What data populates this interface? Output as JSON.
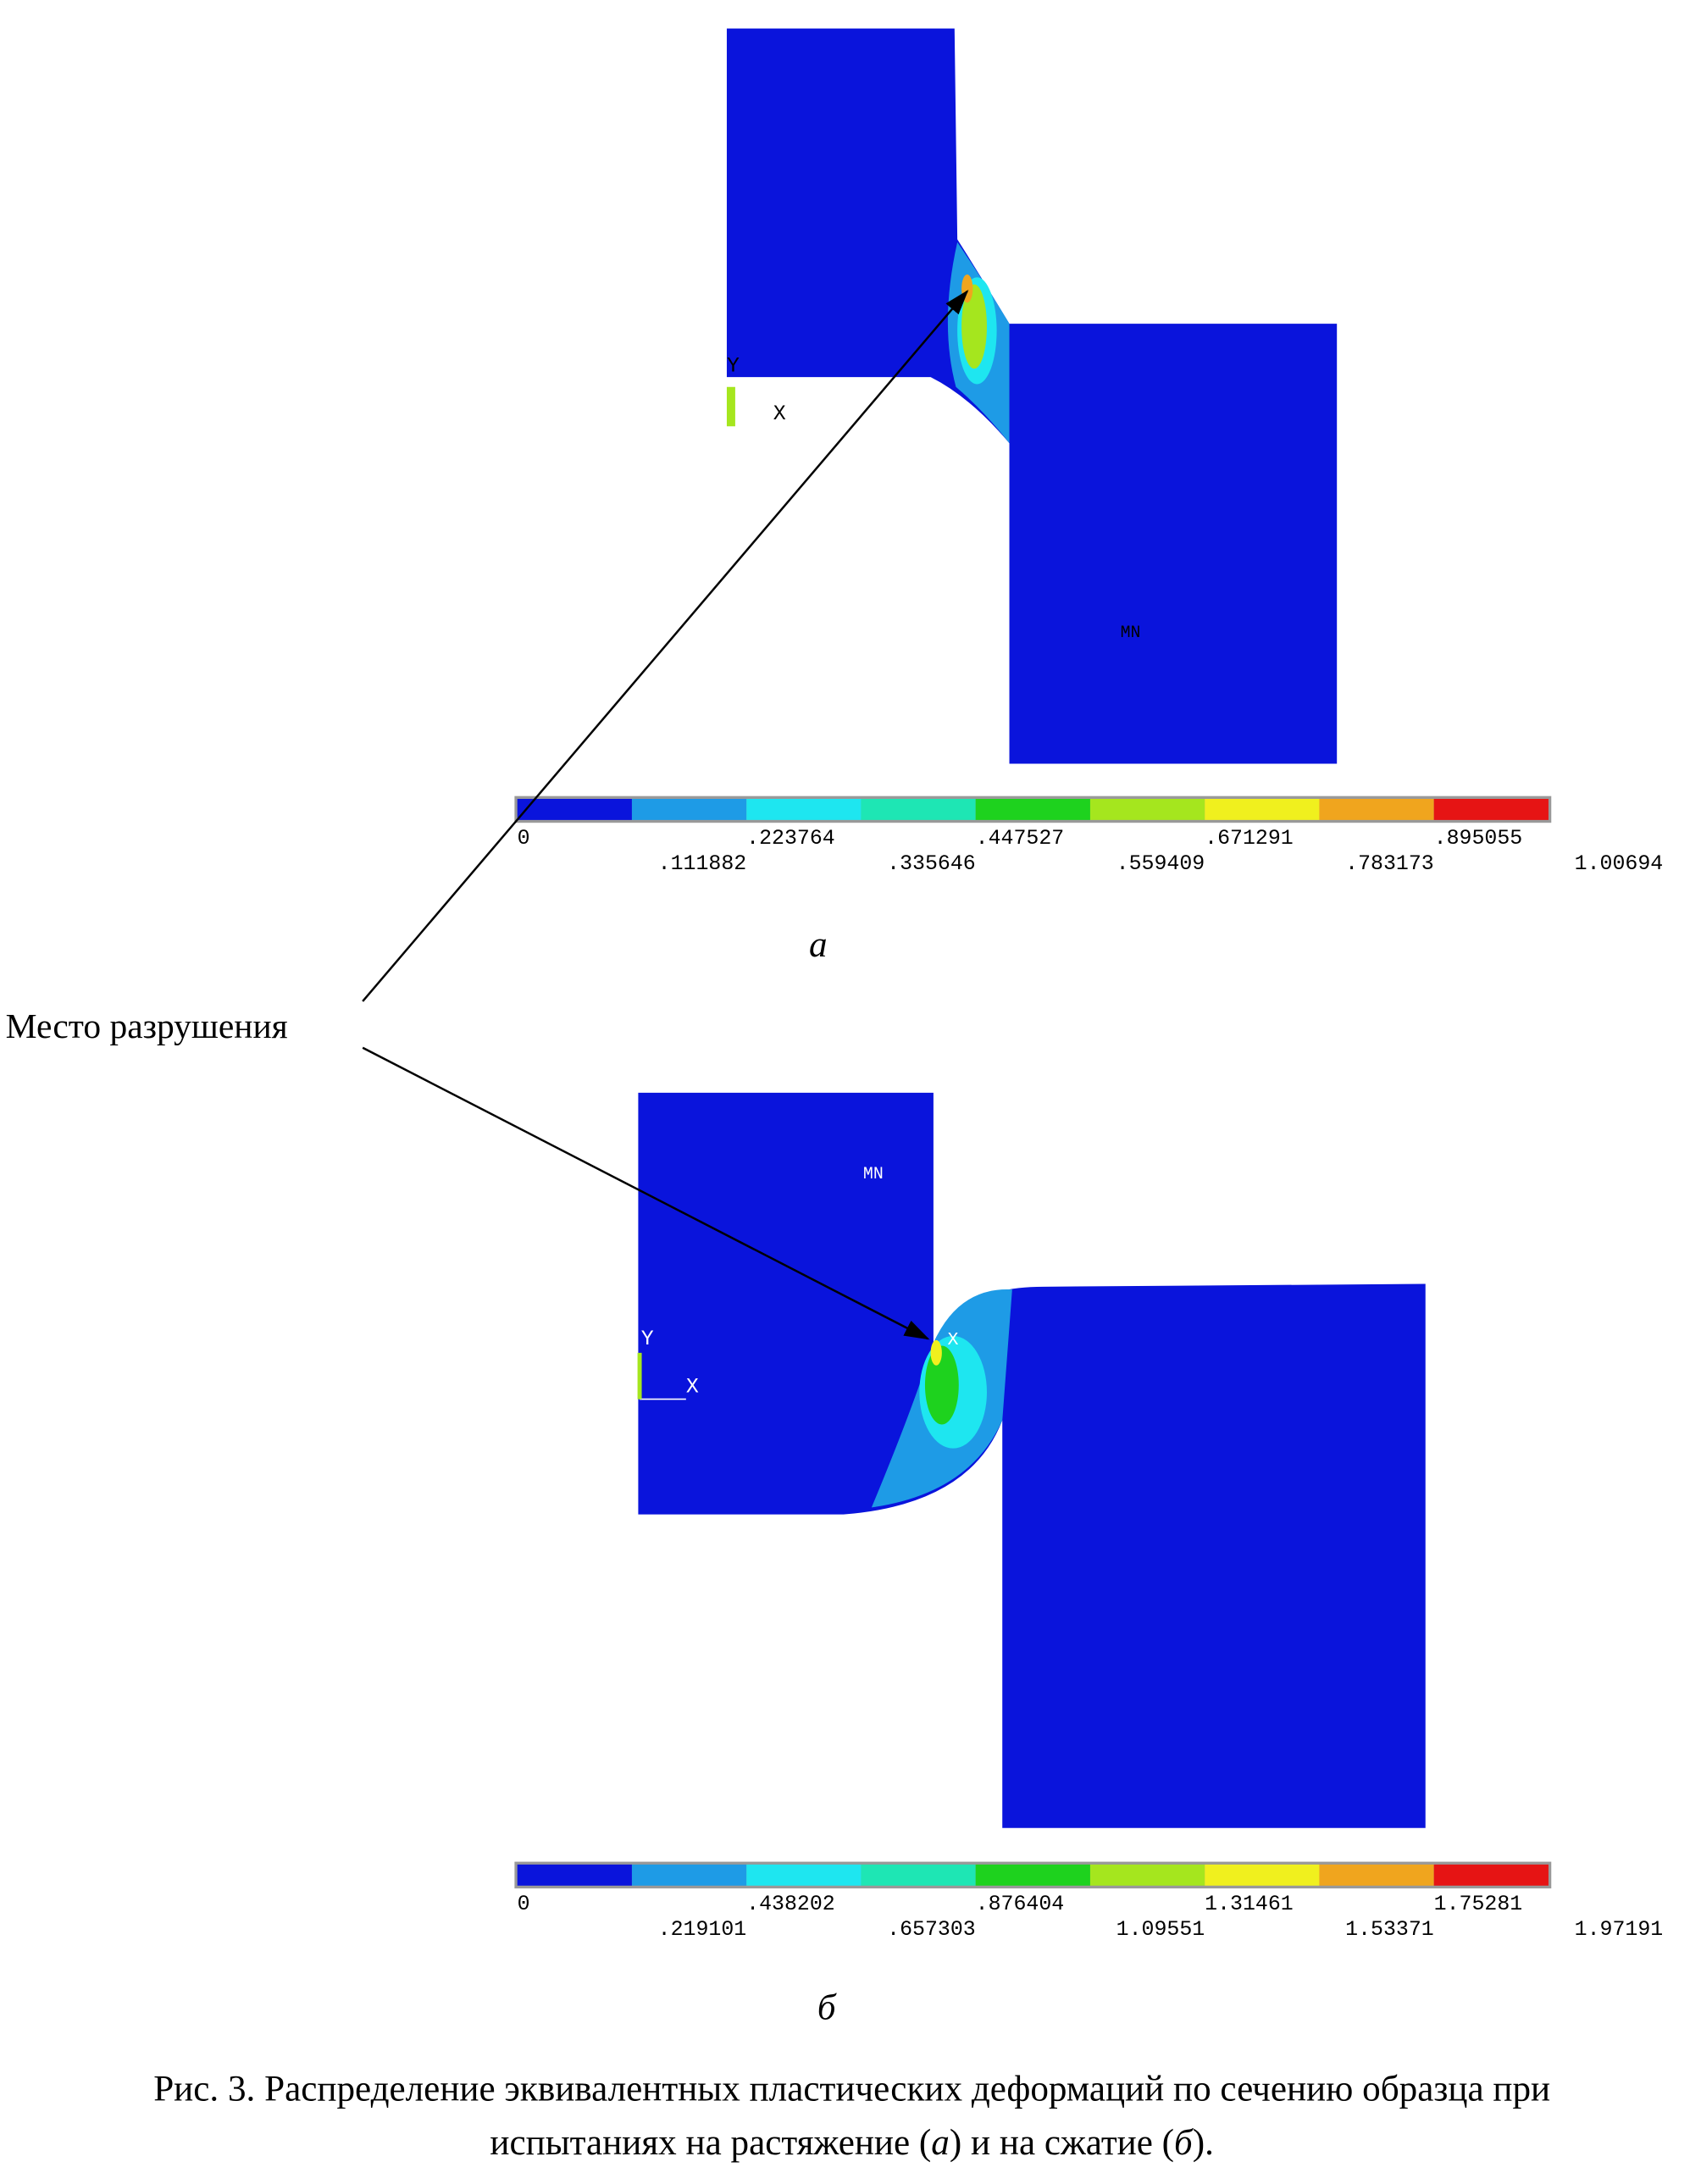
{
  "annotation": "Место разрушения",
  "label_a": "а",
  "label_b": "б",
  "figure_a": {
    "axis_y": "Y",
    "axis_x": "X",
    "marker": "MN",
    "colorbar": {
      "colors": [
        "#0a14dc",
        "#1e9be6",
        "#1ee6f0",
        "#1ee6b4",
        "#1ed21e",
        "#a5e61e",
        "#f0f01e",
        "#f0a51e",
        "#e61414"
      ],
      "labels": [
        "0",
        ".111882",
        ".223764",
        ".335646",
        ".447527",
        ".559409",
        ".671291",
        ".783173",
        ".895055",
        "1.00694"
      ]
    }
  },
  "figure_b": {
    "axis_y": "Y",
    "axis_x": "X",
    "marker": "MN",
    "marker_max": "X",
    "colorbar": {
      "colors": [
        "#0a14dc",
        "#1e9be6",
        "#1ee6f0",
        "#1ee6b4",
        "#1ed21e",
        "#a5e61e",
        "#f0f01e",
        "#f0a51e",
        "#e61414"
      ],
      "labels": [
        "0",
        ".219101",
        ".438202",
        ".657303",
        ".876404",
        "1.09551",
        "1.31461",
        "1.53371",
        "1.75281",
        "1.97191"
      ]
    }
  },
  "caption": {
    "line1": "Рис. 3. Распределение эквивалентных пластических деформаций по сечению образца при",
    "line2_parts": [
      "испытаниях на растяжение (",
      "а",
      ") и на сжатие (",
      "б",
      ")."
    ]
  }
}
